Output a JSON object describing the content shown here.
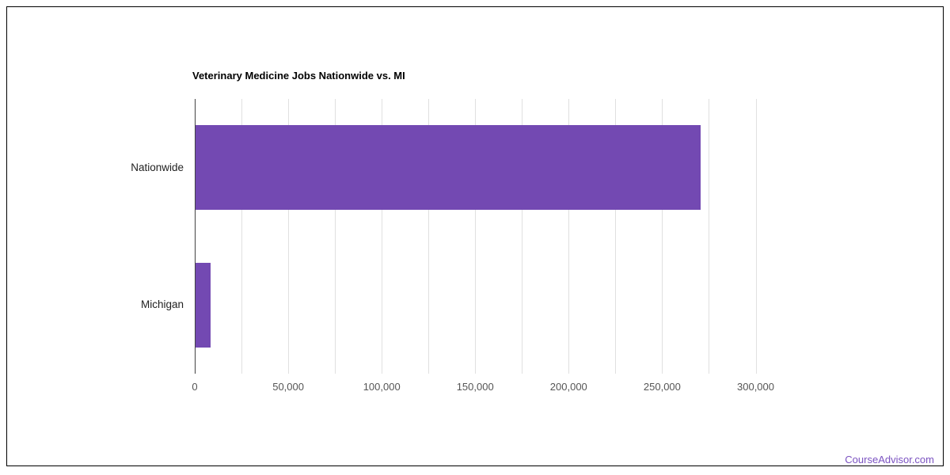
{
  "chart_data": {
    "type": "bar",
    "orientation": "horizontal",
    "title": "Veterinary Medicine Jobs Nationwide vs. MI",
    "categories": [
      "Nationwide",
      "Michigan"
    ],
    "series": [
      {
        "name": "Jobs",
        "values": [
          270000,
          8000
        ]
      }
    ],
    "values": [
      270000,
      8000
    ],
    "xlabel": "",
    "ylabel": "",
    "xlim": [
      0,
      312500
    ],
    "x_ticks": [
      {
        "value": 0,
        "label": "0"
      },
      {
        "value": 50000,
        "label": "50,000"
      },
      {
        "value": 100000,
        "label": "100,000"
      },
      {
        "value": 150000,
        "label": "150,000"
      },
      {
        "value": 200000,
        "label": "200,000"
      },
      {
        "value": 250000,
        "label": "250,000"
      },
      {
        "value": 300000,
        "label": "300,000"
      }
    ],
    "gridlines_every": 25000,
    "gridline_max": 300000,
    "grid": true,
    "legend": "none",
    "bar_color": "#7349B2",
    "gridline_color": "#e0e0e0",
    "axis_line_color": "#424242"
  },
  "footer": {
    "link_text": "CourseAdvisor.com",
    "link_color": "#7B52C1"
  }
}
